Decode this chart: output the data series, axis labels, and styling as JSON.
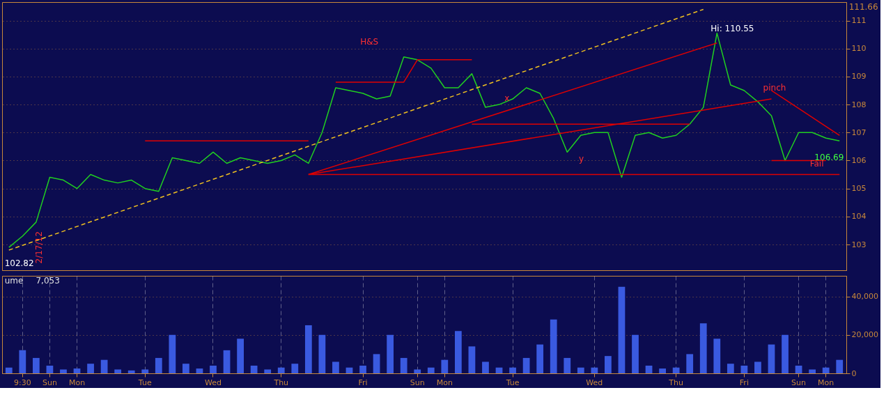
{
  "chart_data": [
    {
      "type": "line",
      "ylim": [
        102.08,
        111.66
      ],
      "yticks": [
        103,
        104,
        105,
        106,
        107,
        108,
        109,
        110,
        111
      ],
      "categories": [
        null,
        null,
        null,
        null,
        null,
        null,
        null,
        null,
        null,
        null,
        null,
        null,
        null,
        null,
        null,
        null,
        null,
        null,
        null,
        null,
        null,
        null,
        null,
        null,
        null,
        null,
        null,
        null,
        null,
        null,
        null,
        null,
        null,
        null,
        null,
        null,
        null,
        null,
        null,
        null,
        null,
        null,
        null,
        null,
        null,
        null,
        null,
        null,
        null,
        null,
        null,
        null,
        null,
        null,
        null,
        null,
        null,
        null,
        null,
        null,
        null,
        null
      ],
      "tick_labels": "y",
      "grid": true,
      "series": [
        {
          "color": "#20d020",
          "values": [
            102.9,
            103.3,
            103.8,
            105.4,
            105.3,
            105.0,
            105.5,
            105.3,
            105.2,
            105.3,
            105.0,
            104.9,
            106.1,
            106.0,
            105.9,
            106.3,
            105.9,
            106.1,
            106.0,
            105.9,
            106.0,
            106.2,
            105.9,
            107.0,
            108.6,
            108.5,
            108.4,
            108.2,
            108.3,
            109.7,
            109.6,
            109.3,
            108.6,
            108.6,
            109.1,
            107.9,
            108.0,
            108.2,
            108.6,
            108.4,
            107.5,
            106.3,
            106.9,
            107.0,
            107.0,
            105.4,
            106.9,
            107.0,
            106.8,
            106.9,
            107.3,
            107.9,
            110.55,
            108.7,
            108.5,
            108.1,
            107.6,
            106.0,
            107.0,
            107.0,
            106.8,
            106.7
          ]
        },
        {
          "type": "line",
          "color": "#f0c020",
          "line_style": "dashed",
          "values": [
            102.8,
            null,
            null,
            null,
            null,
            null,
            null,
            null,
            null,
            null,
            null,
            null,
            null,
            null,
            null,
            null,
            null,
            null,
            null,
            null,
            null,
            null,
            null,
            null,
            null,
            null,
            null,
            null,
            null,
            null,
            null,
            null,
            null,
            null,
            null,
            null,
            null,
            null,
            null,
            null,
            null,
            null,
            null,
            null,
            null,
            null,
            null,
            null,
            null,
            null,
            null,
            111.4,
            null,
            null,
            null,
            null,
            null,
            null,
            null,
            null,
            null,
            null
          ]
        },
        {
          "type": "line",
          "color": "#e00000",
          "values": [
            null,
            null,
            null,
            null,
            null,
            null,
            null,
            null,
            null,
            null,
            null,
            null,
            null,
            null,
            null,
            null,
            null,
            null,
            null,
            null,
            null,
            null,
            105.5,
            null,
            null,
            null,
            null,
            null,
            null,
            null,
            null,
            null,
            null,
            null,
            null,
            null,
            null,
            null,
            null,
            null,
            null,
            null,
            null,
            null,
            null,
            null,
            null,
            null,
            null,
            null,
            null,
            null,
            110.2,
            null,
            null,
            null,
            null,
            null,
            null,
            null,
            null,
            null
          ]
        },
        {
          "type": "line",
          "color": "#e00000",
          "values": [
            null,
            null,
            null,
            null,
            null,
            null,
            null,
            null,
            null,
            null,
            null,
            null,
            null,
            null,
            null,
            null,
            null,
            null,
            null,
            null,
            null,
            null,
            105.5,
            null,
            null,
            null,
            null,
            null,
            null,
            null,
            null,
            null,
            null,
            null,
            null,
            null,
            null,
            null,
            null,
            null,
            null,
            null,
            null,
            null,
            null,
            null,
            null,
            null,
            null,
            null,
            null,
            null,
            null,
            null,
            null,
            null,
            108.2,
            null,
            null,
            null,
            null,
            null
          ]
        },
        {
          "type": "line",
          "color": "#e00000",
          "values": [
            null,
            null,
            null,
            null,
            null,
            null,
            null,
            null,
            null,
            null,
            null,
            null,
            null,
            null,
            null,
            null,
            null,
            null,
            null,
            null,
            null,
            null,
            105.5,
            null,
            null,
            null,
            null,
            null,
            null,
            null,
            null,
            null,
            null,
            null,
            null,
            null,
            null,
            null,
            null,
            null,
            null,
            null,
            null,
            null,
            null,
            null,
            null,
            null,
            null,
            null,
            null,
            null,
            null,
            null,
            null,
            null,
            null,
            null,
            null,
            null,
            null,
            105.5
          ]
        },
        {
          "type": "line",
          "color": "#e00000",
          "values": [
            null,
            null,
            null,
            null,
            null,
            null,
            null,
            null,
            null,
            null,
            106.7,
            null,
            null,
            null,
            null,
            null,
            null,
            null,
            null,
            null,
            null,
            null,
            106.7,
            null,
            null,
            null,
            null,
            null,
            null,
            null,
            null,
            null,
            null,
            null,
            null,
            null,
            null,
            null,
            null,
            null,
            null,
            null,
            null,
            null,
            null,
            null,
            null,
            null,
            null,
            null,
            null,
            null,
            null,
            null,
            null,
            null,
            null,
            null,
            null,
            null,
            null,
            null
          ]
        },
        {
          "type": "line",
          "color": "#e00000",
          "values": [
            null,
            null,
            null,
            null,
            null,
            null,
            null,
            null,
            null,
            null,
            null,
            null,
            null,
            null,
            null,
            null,
            null,
            null,
            null,
            null,
            null,
            null,
            null,
            null,
            108.8,
            null,
            null,
            null,
            null,
            108.8,
            109.6,
            null,
            null,
            null,
            109.6,
            null,
            null,
            null,
            null,
            null,
            null,
            null,
            null,
            null,
            null,
            null,
            null,
            null,
            null,
            null,
            null,
            null,
            null,
            null,
            null,
            null,
            null,
            null,
            null,
            null,
            null,
            null
          ]
        },
        {
          "type": "line",
          "color": "#e00000",
          "values": [
            null,
            null,
            null,
            null,
            null,
            null,
            null,
            null,
            null,
            null,
            null,
            null,
            null,
            null,
            null,
            null,
            null,
            null,
            null,
            null,
            null,
            null,
            null,
            null,
            null,
            null,
            null,
            null,
            null,
            null,
            null,
            null,
            null,
            null,
            107.3,
            null,
            null,
            null,
            null,
            null,
            null,
            null,
            null,
            null,
            null,
            null,
            null,
            null,
            null,
            null,
            107.3,
            null,
            null,
            null,
            null,
            null,
            null,
            null,
            null,
            null,
            null,
            null
          ]
        },
        {
          "type": "line",
          "color": "#e00000",
          "values": [
            null,
            null,
            null,
            null,
            null,
            null,
            null,
            null,
            null,
            null,
            null,
            null,
            null,
            null,
            null,
            null,
            null,
            null,
            null,
            null,
            null,
            null,
            null,
            null,
            null,
            null,
            null,
            null,
            null,
            null,
            null,
            null,
            null,
            null,
            null,
            null,
            null,
            null,
            null,
            null,
            null,
            null,
            null,
            null,
            null,
            null,
            null,
            null,
            null,
            null,
            null,
            null,
            null,
            null,
            null,
            null,
            106.0,
            null,
            null,
            null,
            106.0,
            null
          ]
        },
        {
          "type": "line",
          "color": "#e00000",
          "values": [
            null,
            null,
            null,
            null,
            null,
            null,
            null,
            null,
            null,
            null,
            null,
            null,
            null,
            null,
            null,
            null,
            null,
            null,
            null,
            null,
            null,
            null,
            null,
            null,
            null,
            null,
            null,
            null,
            null,
            null,
            null,
            null,
            null,
            null,
            null,
            null,
            null,
            null,
            null,
            null,
            null,
            null,
            null,
            null,
            null,
            null,
            null,
            null,
            null,
            null,
            null,
            null,
            null,
            null,
            null,
            null,
            108.5,
            null,
            null,
            null,
            null,
            106.9
          ]
        }
      ],
      "annotations": [
        "H&S",
        "pinch",
        "Fail",
        "x",
        "y",
        "Hi: 110.55",
        "102.82",
        "106.69",
        "111.66",
        "2/17/12"
      ]
    },
    {
      "type": "bar",
      "ylim": [
        0,
        50700
      ],
      "yticks": [
        0,
        {
          "value": 20000,
          "label": "20,000"
        },
        {
          "value": 40000,
          "label": "40,000"
        }
      ],
      "categories": [
        null,
        "9:30",
        null,
        "Sun",
        null,
        "Mon",
        null,
        null,
        null,
        null,
        "Tue",
        null,
        null,
        null,
        null,
        "Wed",
        null,
        null,
        null,
        null,
        "Thu",
        null,
        null,
        null,
        null,
        null,
        "Fri",
        null,
        null,
        null,
        "Sun",
        null,
        "Mon",
        null,
        null,
        null,
        null,
        "Tue",
        null,
        null,
        null,
        null,
        null,
        "Wed",
        null,
        null,
        null,
        null,
        null,
        "Thu",
        null,
        null,
        null,
        null,
        "Fri",
        null,
        null,
        null,
        "Sun",
        null,
        "Mon",
        null
      ],
      "grid": true,
      "series": [
        {
          "color": "#3a5ae0",
          "values": [
            3000,
            12000,
            8000,
            4000,
            2000,
            2500,
            5000,
            7000,
            2000,
            1500,
            2000,
            8000,
            20000,
            5000,
            2500,
            4000,
            12000,
            18000,
            4000,
            2000,
            3000,
            5000,
            25000,
            20000,
            6000,
            3000,
            4000,
            10000,
            20000,
            8000,
            2000,
            3000,
            7000,
            22000,
            14000,
            6000,
            3000,
            3000,
            8000,
            15000,
            28000,
            8000,
            3000,
            3000,
            9000,
            45000,
            20000,
            4000,
            2500,
            3000,
            10000,
            26000,
            18000,
            5000,
            4000,
            6000,
            15000,
            20000,
            4000,
            2000,
            3000,
            7000
          ]
        }
      ],
      "annotations": [
        "ume",
        "7,053"
      ]
    }
  ]
}
